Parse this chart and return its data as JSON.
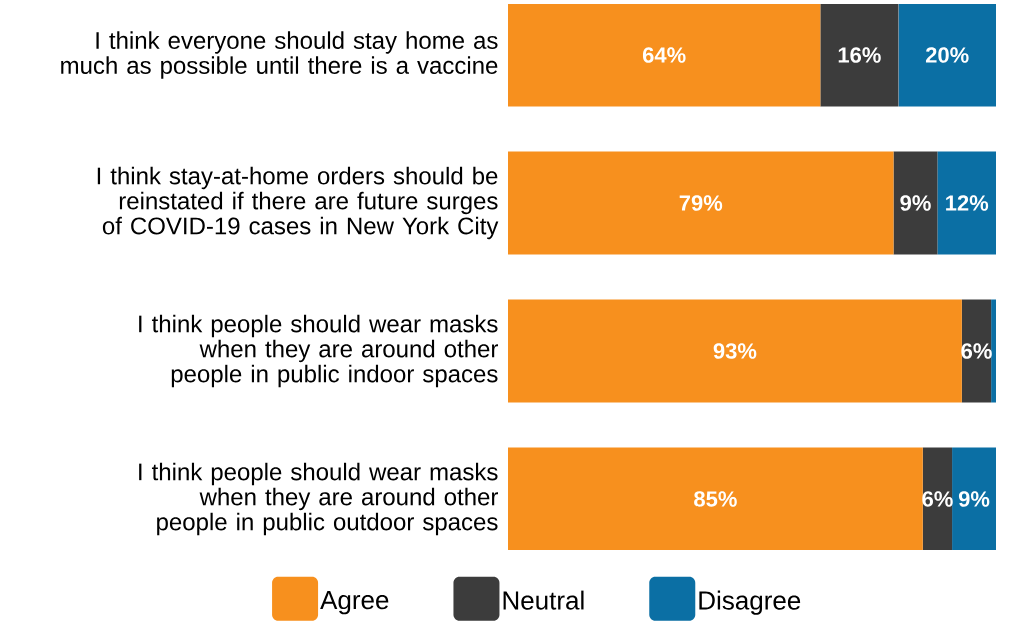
{
  "chart_data": {
    "type": "bar",
    "orientation": "horizontal",
    "stacked": true,
    "legend": "bottom",
    "categories": [
      "I think everyone should stay home as much as possible until there is a vaccine",
      "I think stay-at-home orders should be reinstated if there are future surges of COVID-19 cases in New York City",
      "I think people should wear masks when they are around other people in public indoor spaces",
      "I think people should wear masks when they are around other people in public outdoor spaces"
    ],
    "series": [
      {
        "name": "Agree",
        "color": "#f7901e",
        "values": [
          64,
          79,
          93,
          85
        ],
        "value_labels": [
          "64%",
          "79%",
          "93%",
          "85%"
        ]
      },
      {
        "name": "Neutral",
        "color": "#3c3c3c",
        "values": [
          16,
          9,
          6,
          6
        ],
        "value_labels": [
          "16%",
          "9%",
          "6%",
          "6%"
        ]
      },
      {
        "name": "Disagree",
        "color": "#0b6fa4",
        "values": [
          20,
          12,
          1,
          9
        ],
        "value_labels": [
          "20%",
          "12%",
          null,
          "9%"
        ]
      }
    ]
  }
}
